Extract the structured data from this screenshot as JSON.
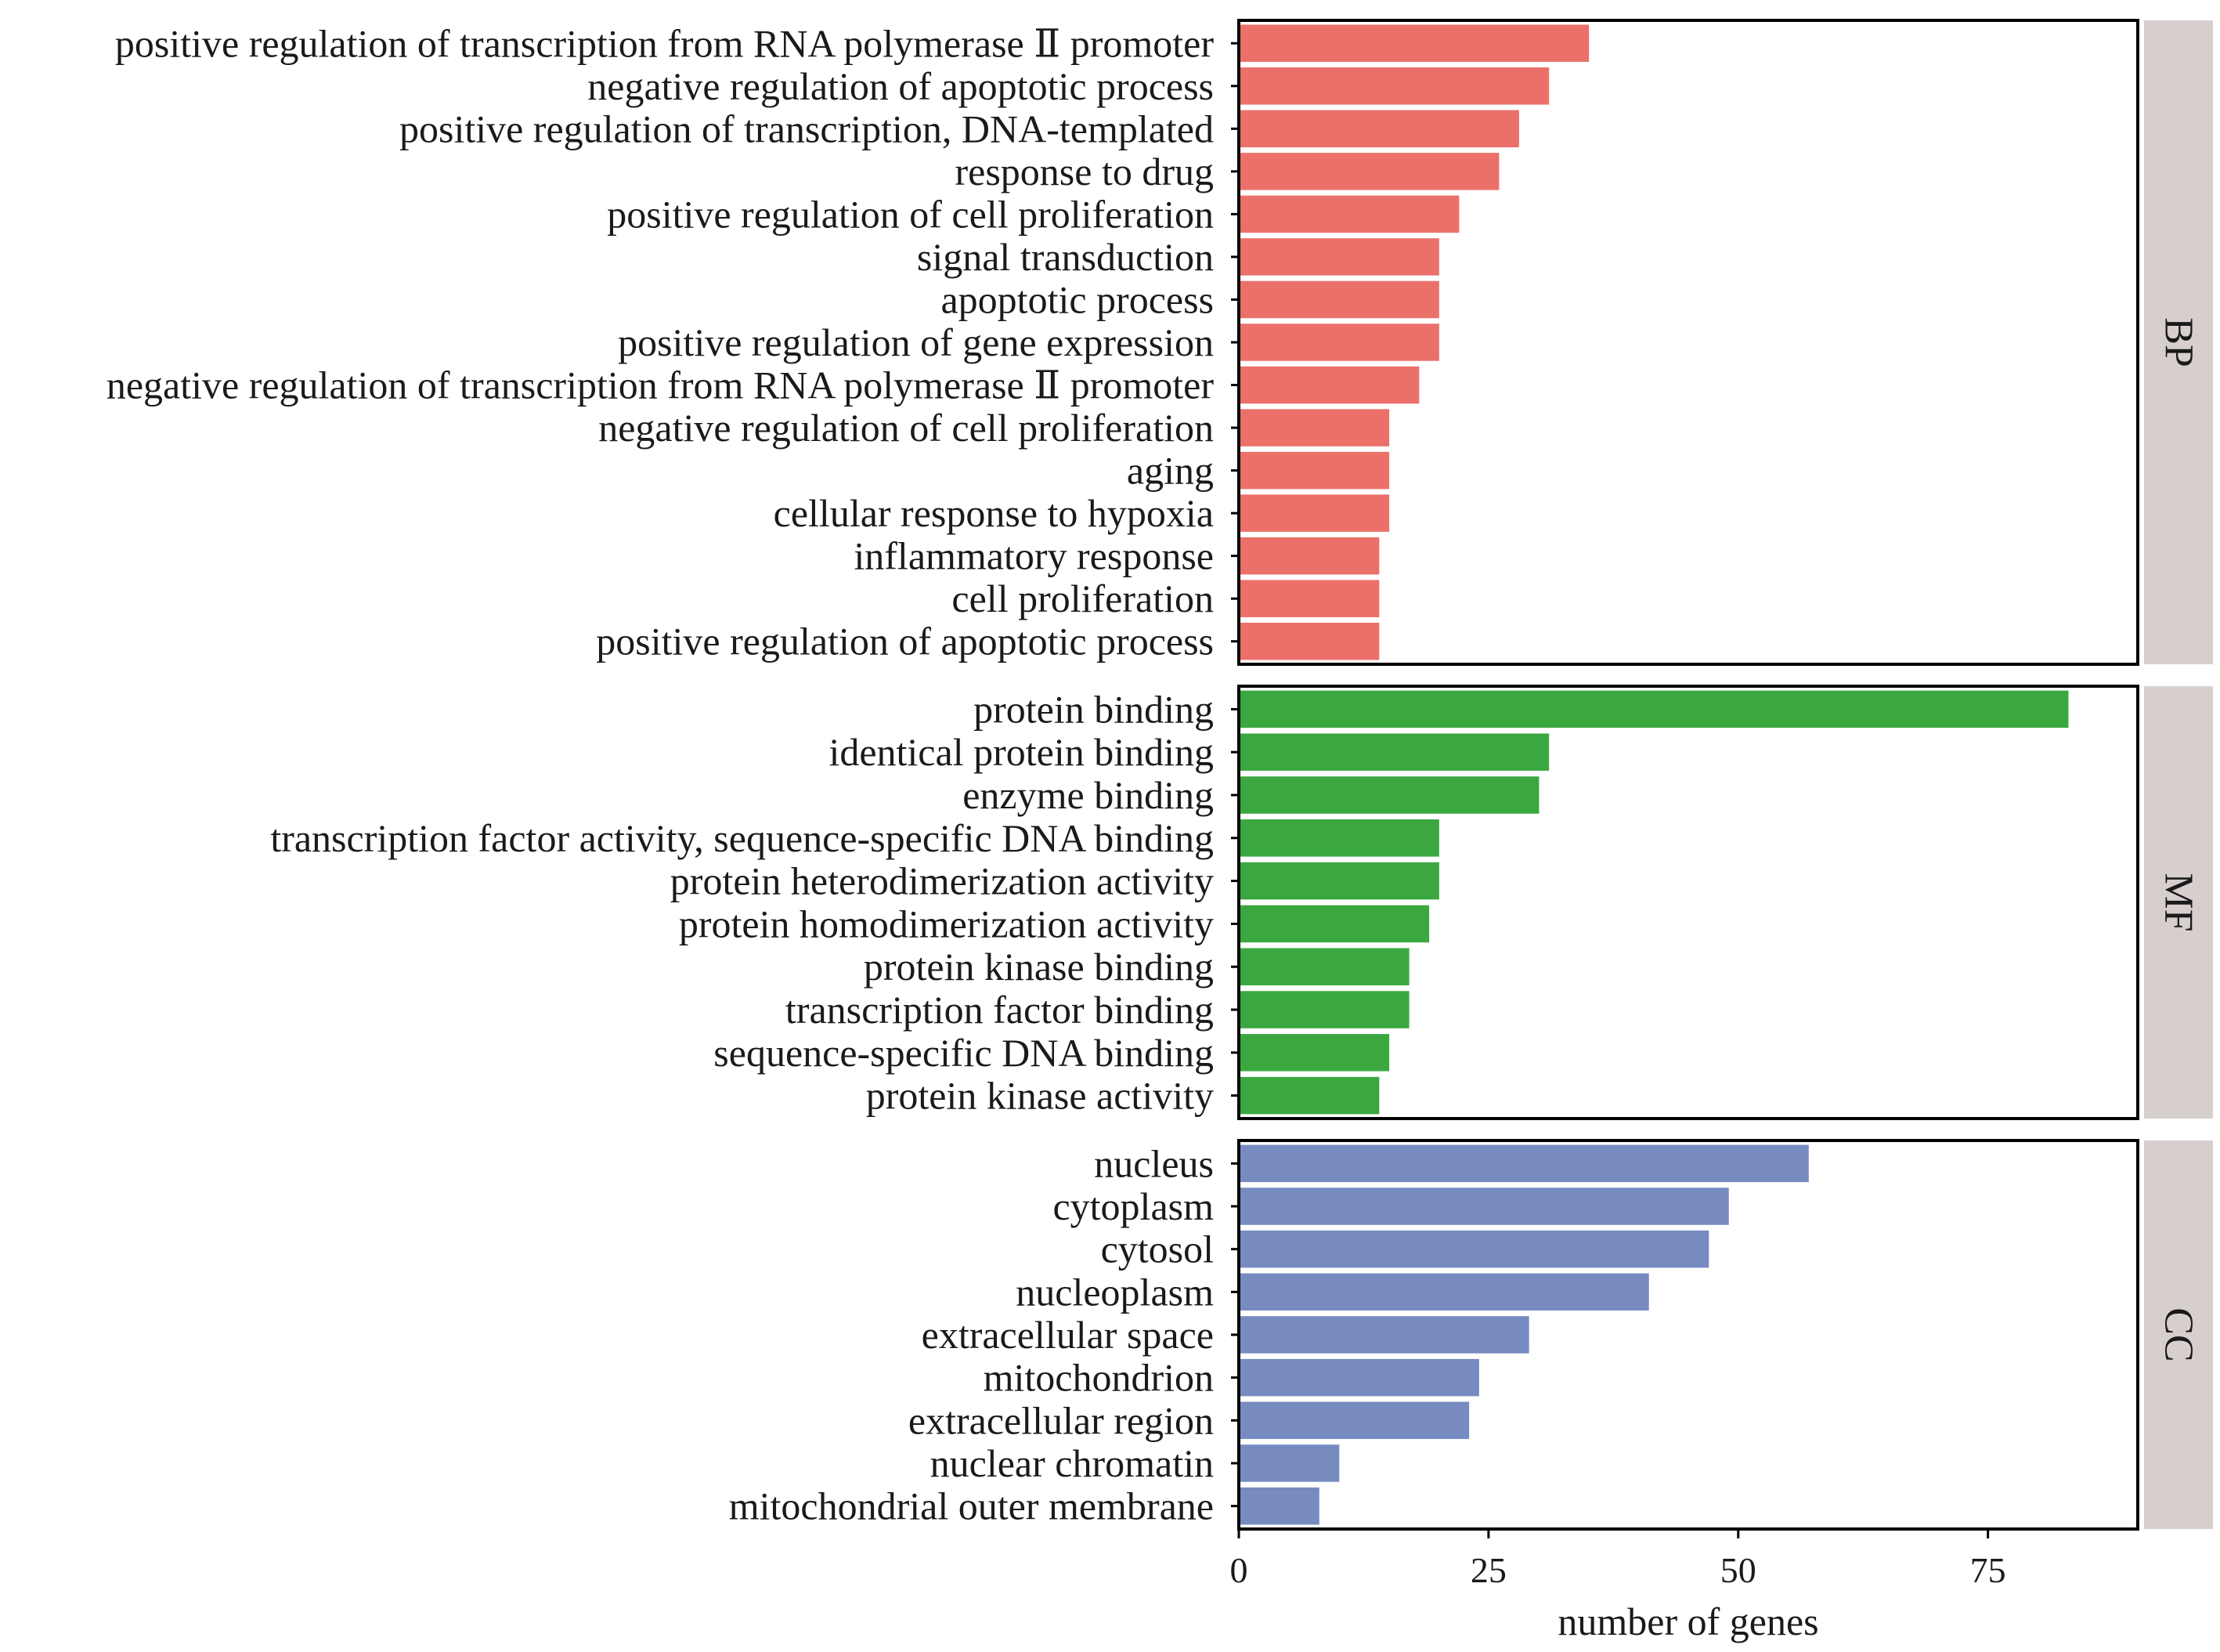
{
  "chart_data": {
    "type": "bar",
    "orientation": "horizontal",
    "xlabel": "number of genes",
    "xlim": [
      0,
      90
    ],
    "x_ticks": [
      0,
      25,
      50,
      75
    ],
    "grid": false,
    "panels": [
      {
        "name": "BP",
        "color": "#ec706a",
        "categories": [
          "positive regulation of transcription from RNA polymerase Ⅱ promoter",
          "negative regulation of apoptotic process",
          "positive regulation of transcription, DNA-templated",
          "response to drug",
          "positive regulation of cell proliferation",
          "signal transduction",
          "apoptotic process",
          "positive regulation of gene expression",
          "negative regulation of transcription from RNA polymerase Ⅱ promoter",
          "negative regulation of cell proliferation",
          "aging",
          "cellular response to hypoxia",
          "inflammatory response",
          "cell proliferation",
          "positive regulation of apoptotic process"
        ],
        "values": [
          35,
          31,
          28,
          26,
          22,
          20,
          20,
          20,
          18,
          15,
          15,
          15,
          14,
          14,
          14
        ]
      },
      {
        "name": "MF",
        "color": "#3aa83f",
        "categories": [
          "protein binding",
          "identical protein binding",
          "enzyme binding",
          "transcription factor activity, sequence-specific DNA binding",
          "protein heterodimerization activity",
          "protein homodimerization activity",
          "protein kinase binding",
          "transcription factor binding",
          "sequence-specific DNA binding",
          "protein kinase activity"
        ],
        "values": [
          83,
          31,
          30,
          20,
          20,
          19,
          17,
          17,
          15,
          14
        ]
      },
      {
        "name": "CC",
        "color": "#778bc1",
        "categories": [
          "nucleus",
          "cytoplasm",
          "cytosol",
          "nucleoplasm",
          "extracellular space",
          "mitochondrion",
          "extracellular region",
          "nuclear chromatin",
          "mitochondrial outer membrane"
        ],
        "values": [
          57,
          49,
          47,
          41,
          29,
          24,
          23,
          10,
          8
        ]
      }
    ]
  }
}
